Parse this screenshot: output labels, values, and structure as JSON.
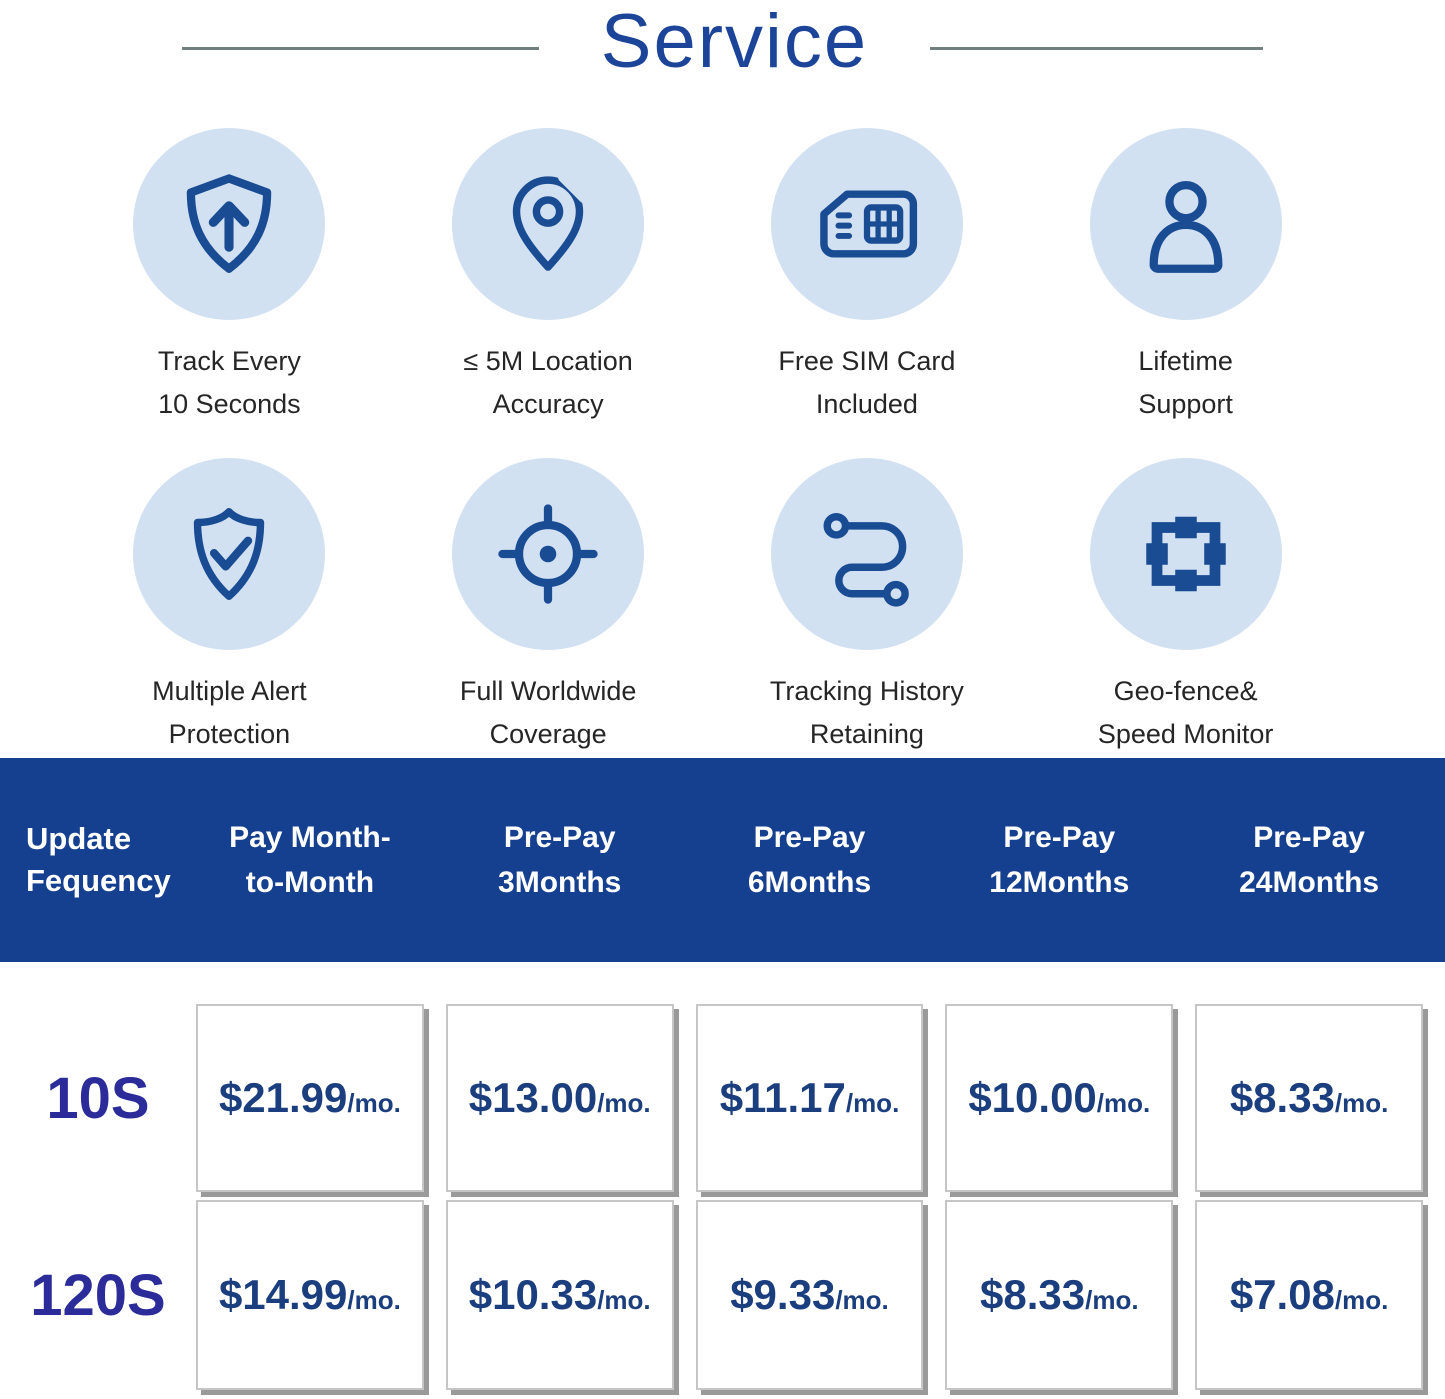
{
  "title": "Service",
  "features": [
    {
      "icon": "shield-arrow-up",
      "label_line1": "Track Every",
      "label_line2": "10 Seconds"
    },
    {
      "icon": "location-pin",
      "label_line1": "≤ 5M Location",
      "label_line2": "Accuracy"
    },
    {
      "icon": "sim-card",
      "label_line1": "Free SIM Card",
      "label_line2": "Included"
    },
    {
      "icon": "person",
      "label_line1": "Lifetime",
      "label_line2": "Support"
    },
    {
      "icon": "shield-check",
      "label_line1": "Multiple Alert",
      "label_line2": "Protection"
    },
    {
      "icon": "crosshair-target",
      "label_line1": "Full Worldwide",
      "label_line2": "Coverage"
    },
    {
      "icon": "route-path",
      "label_line1": "Tracking History",
      "label_line2": "Retaining"
    },
    {
      "icon": "geo-fence",
      "label_line1": "Geo-fence&",
      "label_line2": "Speed Monitor"
    }
  ],
  "pricing_table": {
    "row_header_line1": "Update",
    "row_header_line2": "Fequency",
    "columns": [
      {
        "line1": "Pay Month-",
        "line2": "to-Month"
      },
      {
        "line1": "Pre-Pay",
        "line2": "3Months"
      },
      {
        "line1": "Pre-Pay",
        "line2": "6Months"
      },
      {
        "line1": "Pre-Pay",
        "line2": "12Months"
      },
      {
        "line1": "Pre-Pay",
        "line2": "24Months"
      }
    ],
    "rows": [
      {
        "label": "10S",
        "prices": [
          {
            "amount": "$21.99",
            "unit": "/mo."
          },
          {
            "amount": "$13.00",
            "unit": "/mo."
          },
          {
            "amount": "$11.17",
            "unit": "/mo."
          },
          {
            "amount": "$10.00",
            "unit": "/mo."
          },
          {
            "amount": "$8.33",
            "unit": "/mo."
          }
        ]
      },
      {
        "label": "120S",
        "prices": [
          {
            "amount": "$14.99",
            "unit": "/mo."
          },
          {
            "amount": "$10.33",
            "unit": "/mo."
          },
          {
            "amount": "$9.33",
            "unit": "/mo."
          },
          {
            "amount": "$8.33",
            "unit": "/mo."
          },
          {
            "amount": "$7.08",
            "unit": "/mo."
          }
        ]
      }
    ]
  },
  "colors": {
    "band-blue": "#153f8f",
    "title-blue": "#1c4499",
    "icon-navy": "#1a4c94",
    "circle-bg": "#d2e1f1",
    "price-navy": "#1b3e7e",
    "label-indigo": "#2b2b99"
  }
}
